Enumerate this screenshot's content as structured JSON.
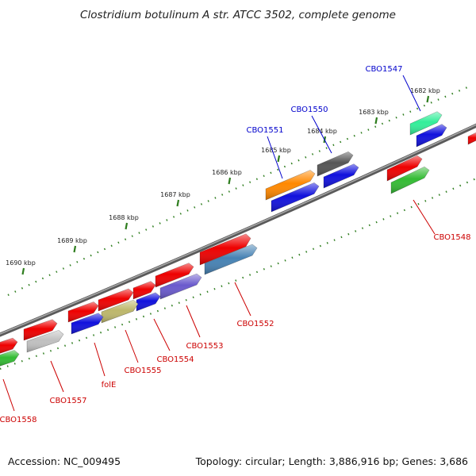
{
  "title": "Clostridium botulinum A str. ATCC 3502, complete genome",
  "footer": {
    "accession": "Accession: NC_009495",
    "summary": "Topology: circular; Length: 3,886,916 bp; Genes: 3,686"
  },
  "colors": {
    "backbone": "#7a7a7a",
    "ruler_tick": "#2e7d1e",
    "label_forward": "#0000cc",
    "label_reverse": "#cc0000"
  },
  "ruler_ticks": [
    "1682 kbp",
    "1683 kbp",
    "1684 kbp",
    "1685 kbp",
    "1686 kbp",
    "1687 kbp",
    "1688 kbp",
    "1689 kbp",
    "1690 kbp"
  ],
  "genes": [
    {
      "strand": "forward",
      "name": "CBO1547",
      "color": "#33ee99"
    },
    {
      "strand": "forward",
      "name": "",
      "color": "#1111dd"
    },
    {
      "strand": "forward",
      "name": "CBO1550",
      "color": "#555555"
    },
    {
      "strand": "forward",
      "name": "",
      "color": "#1111dd"
    },
    {
      "strand": "forward",
      "name": "CBO1551",
      "color": "#ff8800"
    },
    {
      "strand": "forward",
      "name": "",
      "color": "#1111dd"
    },
    {
      "strand": "reverse",
      "name": "",
      "color": "#ee0000"
    },
    {
      "strand": "reverse",
      "name": "",
      "color": "#ee0000"
    },
    {
      "strand": "reverse",
      "name": "CBO1548",
      "color": "#33bb33"
    },
    {
      "strand": "reverse",
      "name": "",
      "color": "#ee0000"
    },
    {
      "strand": "reverse",
      "name": "CBO1552",
      "color": "#4682b4"
    },
    {
      "strand": "reverse",
      "name": "",
      "color": "#ee0000"
    },
    {
      "strand": "reverse",
      "name": "CBO1553",
      "color": "#6a5acd"
    },
    {
      "strand": "reverse",
      "name": "",
      "color": "#ee0000"
    },
    {
      "strand": "reverse",
      "name": "CBO1554",
      "color": "#1111dd"
    },
    {
      "strand": "reverse",
      "name": "",
      "color": "#ee0000"
    },
    {
      "strand": "reverse",
      "name": "CBO1555",
      "color": "#bdb76b"
    },
    {
      "strand": "reverse",
      "name": "",
      "color": "#ee0000"
    },
    {
      "strand": "reverse",
      "name": "folE",
      "color": "#1111dd"
    },
    {
      "strand": "reverse",
      "name": "",
      "color": "#ee0000"
    },
    {
      "strand": "reverse",
      "name": "CBO1557",
      "color": "#c0c0c0"
    },
    {
      "strand": "reverse",
      "name": "",
      "color": "#ee0000"
    },
    {
      "strand": "reverse",
      "name": "CBO1558",
      "color": "#33bb33"
    }
  ]
}
